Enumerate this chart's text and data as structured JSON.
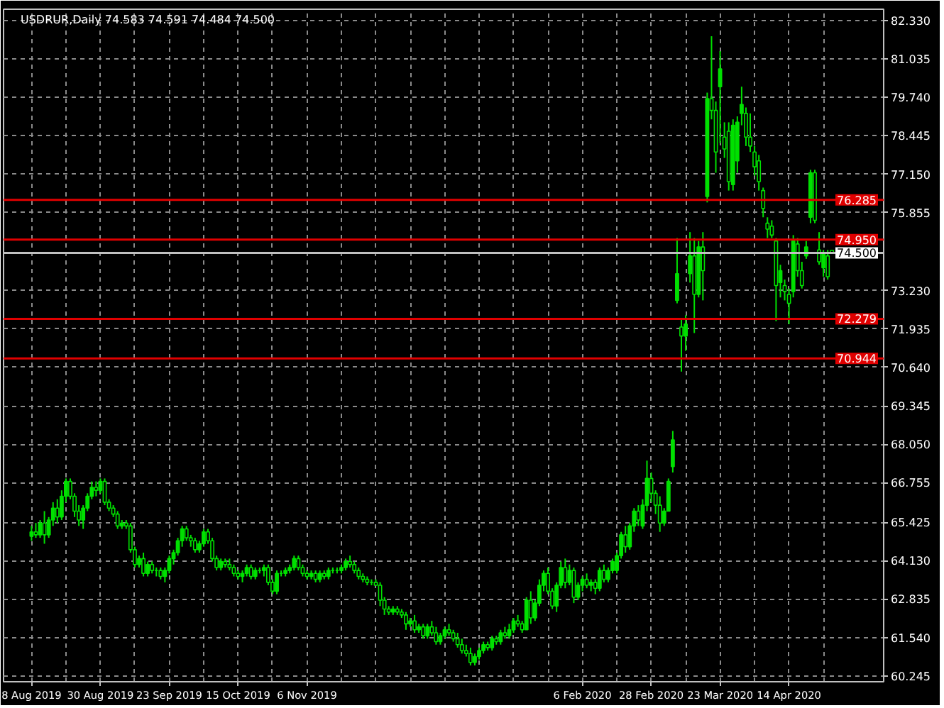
{
  "chart_data": {
    "type": "candlestick",
    "title": "USDRUR,Daily  74.583 74.591 74.484 74.500",
    "color": "#00e000",
    "grid": true,
    "ylim": [
      60.05,
      82.71
    ],
    "categories": [
      "8 Aug 2019",
      null,
      null,
      null,
      null,
      null,
      null,
      null,
      null,
      null,
      null,
      null,
      null,
      null,
      null,
      null,
      "30 Aug 2019",
      null,
      null,
      null,
      null,
      null,
      null,
      null,
      null,
      null,
      null,
      null,
      null,
      null,
      null,
      null,
      "23 Sep 2019",
      null,
      null,
      null,
      null,
      null,
      null,
      null,
      null,
      null,
      null,
      null,
      null,
      null,
      null,
      null,
      "15 Oct 2019",
      null,
      null,
      null,
      null,
      null,
      null,
      null,
      null,
      null,
      null,
      null,
      null,
      null,
      null,
      null,
      "6 Nov 2019",
      null,
      null,
      null,
      null,
      null,
      null,
      null,
      null,
      null,
      null,
      null,
      null,
      null,
      null,
      null,
      null,
      null,
      null,
      null,
      null,
      null,
      null,
      null,
      null,
      null,
      null,
      null,
      null,
      null,
      null,
      null,
      null,
      null,
      null,
      null,
      null,
      null,
      null,
      null,
      null,
      null,
      null,
      null,
      null,
      null,
      null,
      null,
      null,
      null,
      null,
      null,
      null,
      null,
      null,
      null,
      null,
      null,
      null,
      null,
      null,
      null,
      null,
      null,
      "6 Feb 2020",
      null,
      null,
      null,
      null,
      null,
      null,
      null,
      null,
      null,
      null,
      null,
      null,
      null,
      null,
      null,
      "28 Feb 2020",
      null,
      null,
      null,
      null,
      null,
      null,
      null,
      null,
      null,
      null,
      null,
      null,
      null,
      null,
      null,
      "23 Mar 2020",
      null,
      null,
      null,
      null,
      null,
      null,
      null,
      null,
      null,
      null,
      null,
      null,
      null,
      null,
      null,
      "14 Apr 2020",
      null,
      null,
      null,
      null,
      null,
      null,
      null,
      null,
      null,
      null
    ],
    "yticks": [
      {
        "value": 82.33,
        "label": "82.330"
      },
      {
        "value": 81.035,
        "label": "81.035"
      },
      {
        "value": 79.74,
        "label": "79.740"
      },
      {
        "value": 78.445,
        "label": "78.445"
      },
      {
        "value": 77.15,
        "label": "77.150"
      },
      {
        "value": 75.855,
        "label": "75.855"
      },
      {
        "value": 73.23,
        "label": "73.230"
      },
      {
        "value": 71.935,
        "label": "71.935"
      },
      {
        "value": 70.64,
        "label": "70.640"
      },
      {
        "value": 69.345,
        "label": "69.345"
      },
      {
        "value": 68.05,
        "label": "68.050"
      },
      {
        "value": 66.755,
        "label": "66.755"
      },
      {
        "value": 65.425,
        "label": "65.425"
      },
      {
        "value": 64.13,
        "label": "64.130"
      },
      {
        "value": 62.835,
        "label": "62.835"
      },
      {
        "value": 61.54,
        "label": "61.540"
      },
      {
        "value": 60.245,
        "label": "60.245"
      }
    ],
    "ref_lines": [
      {
        "axis": "y",
        "value": 76.285,
        "label": "76.285",
        "color": "#e00000"
      },
      {
        "axis": "y",
        "value": 74.95,
        "label": "74.950",
        "color": "#e00000"
      },
      {
        "axis": "y",
        "value": 74.5,
        "label": "74.500",
        "color": "#c0c0c0"
      },
      {
        "axis": "y",
        "value": 72.279,
        "label": "72.279",
        "color": "#e00000"
      },
      {
        "axis": "y",
        "value": 70.944,
        "label": "70.944",
        "color": "#e00000"
      }
    ],
    "ohlc": [
      [
        64.95,
        65.3,
        64.8,
        65.1
      ],
      [
        65.1,
        65.4,
        64.9,
        65.0
      ],
      [
        65.0,
        65.5,
        64.9,
        65.4
      ],
      [
        65.4,
        65.8,
        64.7,
        65.0
      ],
      [
        65.0,
        65.6,
        64.9,
        65.5
      ],
      [
        65.5,
        66.1,
        65.3,
        65.9
      ],
      [
        65.9,
        66.2,
        65.4,
        65.6
      ],
      [
        65.6,
        66.5,
        65.5,
        66.3
      ],
      [
        66.3,
        66.9,
        66.1,
        66.8
      ],
      [
        66.8,
        66.9,
        66.2,
        66.3
      ],
      [
        66.3,
        66.4,
        65.6,
        65.8
      ],
      [
        65.8,
        66.0,
        65.3,
        65.5
      ],
      [
        65.5,
        66.0,
        65.2,
        65.9
      ],
      [
        65.9,
        66.4,
        65.8,
        66.3
      ],
      [
        66.3,
        66.8,
        66.2,
        66.6
      ],
      [
        66.6,
        66.8,
        66.3,
        66.5
      ],
      [
        66.5,
        66.9,
        66.4,
        66.8
      ],
      [
        66.8,
        66.9,
        66.0,
        66.1
      ],
      [
        66.1,
        66.2,
        65.8,
        65.9
      ],
      [
        65.9,
        66.0,
        65.6,
        65.7
      ],
      [
        65.7,
        65.8,
        65.2,
        65.3
      ],
      [
        65.3,
        65.5,
        65.2,
        65.4
      ],
      [
        65.4,
        65.5,
        65.2,
        65.3
      ],
      [
        65.3,
        65.4,
        64.4,
        64.5
      ],
      [
        64.5,
        64.6,
        63.9,
        64.0
      ],
      [
        64.0,
        64.3,
        63.9,
        64.2
      ],
      [
        64.2,
        64.4,
        63.6,
        63.7
      ],
      [
        63.7,
        64.1,
        63.6,
        64.0
      ],
      [
        64.0,
        64.1,
        63.7,
        63.8
      ],
      [
        63.8,
        63.9,
        63.6,
        63.8
      ],
      [
        63.8,
        63.9,
        63.5,
        63.6
      ],
      [
        63.6,
        63.9,
        63.4,
        63.8
      ],
      [
        63.8,
        64.3,
        63.7,
        64.2
      ],
      [
        64.2,
        64.5,
        64.0,
        64.4
      ],
      [
        64.4,
        64.9,
        64.3,
        64.8
      ],
      [
        64.8,
        65.3,
        64.6,
        65.2
      ],
      [
        65.2,
        65.3,
        64.8,
        64.9
      ],
      [
        64.9,
        65.0,
        64.6,
        64.8
      ],
      [
        64.8,
        64.9,
        64.4,
        64.5
      ],
      [
        64.5,
        64.8,
        64.4,
        64.7
      ],
      [
        64.7,
        65.2,
        64.6,
        65.1
      ],
      [
        65.1,
        65.2,
        64.7,
        64.8
      ],
      [
        64.8,
        64.9,
        64.1,
        64.2
      ],
      [
        64.2,
        64.3,
        63.8,
        63.9
      ],
      [
        63.9,
        64.2,
        63.8,
        64.1
      ],
      [
        64.1,
        64.2,
        63.9,
        64.0
      ],
      [
        64.0,
        64.2,
        63.8,
        63.9
      ],
      [
        63.9,
        64.0,
        63.6,
        63.7
      ],
      [
        63.7,
        63.8,
        63.5,
        63.6
      ],
      [
        63.6,
        63.8,
        63.4,
        63.7
      ],
      [
        63.7,
        64.0,
        63.6,
        63.9
      ],
      [
        63.9,
        64.0,
        63.5,
        63.6
      ],
      [
        63.6,
        63.9,
        63.5,
        63.8
      ],
      [
        63.8,
        63.9,
        63.7,
        63.8
      ],
      [
        63.8,
        64.0,
        63.6,
        63.9
      ],
      [
        63.9,
        64.0,
        63.3,
        63.4
      ],
      [
        63.4,
        63.5,
        63.0,
        63.1
      ],
      [
        63.1,
        63.8,
        63.0,
        63.7
      ],
      [
        63.7,
        63.8,
        63.6,
        63.7
      ],
      [
        63.7,
        63.9,
        63.6,
        63.8
      ],
      [
        63.8,
        64.0,
        63.7,
        63.9
      ],
      [
        63.9,
        64.3,
        63.8,
        64.2
      ],
      [
        64.2,
        64.3,
        63.8,
        63.9
      ],
      [
        63.9,
        64.0,
        63.6,
        63.7
      ],
      [
        63.7,
        63.8,
        63.5,
        63.6
      ],
      [
        63.6,
        63.8,
        63.5,
        63.7
      ],
      [
        63.7,
        63.8,
        63.4,
        63.5
      ],
      [
        63.5,
        63.8,
        63.4,
        63.7
      ],
      [
        63.7,
        63.8,
        63.5,
        63.6
      ],
      [
        63.6,
        63.9,
        63.5,
        63.8
      ],
      [
        63.8,
        63.9,
        63.7,
        63.8
      ],
      [
        63.8,
        63.9,
        63.7,
        63.8
      ],
      [
        63.8,
        64.0,
        63.7,
        63.9
      ],
      [
        63.9,
        64.2,
        63.8,
        64.1
      ],
      [
        64.1,
        64.3,
        63.9,
        64.0
      ],
      [
        64.0,
        64.1,
        63.7,
        63.8
      ],
      [
        63.8,
        63.9,
        63.5,
        63.6
      ],
      [
        63.6,
        63.7,
        63.4,
        63.5
      ],
      [
        63.5,
        63.6,
        63.3,
        63.4
      ],
      [
        63.4,
        63.5,
        63.3,
        63.4
      ],
      [
        63.4,
        63.5,
        63.3,
        63.3
      ],
      [
        63.3,
        63.4,
        62.6,
        62.8
      ],
      [
        62.8,
        62.9,
        62.3,
        62.5
      ],
      [
        62.5,
        62.6,
        62.3,
        62.4
      ],
      [
        62.4,
        62.6,
        62.3,
        62.5
      ],
      [
        62.5,
        62.6,
        62.3,
        62.4
      ],
      [
        62.4,
        62.5,
        62.2,
        62.3
      ],
      [
        62.3,
        62.4,
        61.8,
        62.0
      ],
      [
        62.0,
        62.2,
        61.9,
        62.1
      ],
      [
        62.1,
        62.3,
        61.7,
        61.8
      ],
      [
        61.8,
        62.0,
        61.7,
        61.9
      ],
      [
        61.9,
        62.0,
        61.5,
        61.6
      ],
      [
        61.6,
        62.0,
        61.5,
        61.9
      ],
      [
        61.9,
        62.1,
        61.6,
        61.7
      ],
      [
        61.7,
        61.9,
        61.3,
        61.4
      ],
      [
        61.4,
        61.7,
        61.3,
        61.6
      ],
      [
        61.6,
        61.9,
        61.5,
        61.8
      ],
      [
        61.8,
        62.0,
        61.6,
        61.7
      ],
      [
        61.7,
        61.8,
        61.4,
        61.5
      ],
      [
        61.5,
        61.7,
        61.2,
        61.3
      ],
      [
        61.3,
        61.5,
        61.0,
        61.1
      ],
      [
        61.1,
        61.3,
        60.9,
        61.0
      ],
      [
        61.0,
        61.2,
        60.6,
        60.7
      ],
      [
        60.7,
        61.0,
        60.6,
        60.9
      ],
      [
        60.9,
        61.2,
        60.8,
        61.1
      ],
      [
        61.1,
        61.4,
        61.0,
        61.3
      ],
      [
        61.3,
        61.4,
        61.1,
        61.2
      ],
      [
        61.2,
        61.6,
        61.1,
        61.5
      ],
      [
        61.5,
        61.6,
        61.3,
        61.4
      ],
      [
        61.4,
        61.8,
        61.3,
        61.7
      ],
      [
        61.7,
        61.9,
        61.5,
        61.6
      ],
      [
        61.6,
        62.0,
        61.5,
        61.8
      ],
      [
        61.8,
        62.2,
        61.7,
        62.1
      ],
      [
        62.1,
        62.3,
        61.9,
        62.0
      ],
      [
        62.0,
        62.1,
        61.7,
        61.8
      ],
      [
        61.8,
        62.9,
        61.8,
        62.8
      ],
      [
        62.8,
        63.1,
        62.0,
        62.2
      ],
      [
        62.2,
        62.8,
        62.1,
        62.7
      ],
      [
        62.7,
        63.5,
        62.6,
        63.3
      ],
      [
        63.3,
        63.8,
        63.1,
        63.7
      ],
      [
        63.7,
        63.9,
        63.0,
        63.1
      ],
      [
        63.1,
        63.2,
        62.5,
        62.6
      ],
      [
        62.6,
        63.4,
        62.4,
        63.3
      ],
      [
        63.3,
        64.1,
        63.2,
        63.9
      ],
      [
        63.9,
        64.2,
        63.2,
        63.4
      ],
      [
        63.4,
        64.0,
        63.3,
        63.8
      ],
      [
        63.8,
        63.9,
        62.7,
        62.9
      ],
      [
        62.9,
        63.4,
        62.8,
        63.3
      ],
      [
        63.3,
        63.6,
        63.1,
        63.5
      ],
      [
        63.5,
        63.7,
        63.2,
        63.3
      ],
      [
        63.3,
        63.5,
        63.1,
        63.4
      ],
      [
        63.4,
        63.5,
        63.0,
        63.2
      ],
      [
        63.2,
        63.9,
        63.1,
        63.8
      ],
      [
        63.8,
        64.0,
        63.4,
        63.5
      ],
      [
        63.5,
        63.9,
        63.4,
        63.8
      ],
      [
        63.8,
        64.2,
        63.7,
        64.1
      ],
      [
        63.8,
        64.4,
        63.7,
        64.3
      ],
      [
        64.3,
        65.1,
        64.2,
        65.0
      ],
      [
        65.0,
        65.3,
        64.4,
        64.6
      ],
      [
        64.6,
        65.4,
        64.5,
        65.3
      ],
      [
        65.3,
        65.9,
        65.1,
        65.8
      ],
      [
        65.8,
        66.0,
        65.3,
        65.5
      ],
      [
        65.3,
        66.2,
        65.2,
        66.0
      ],
      [
        66.0,
        67.5,
        65.8,
        66.9
      ],
      [
        66.9,
        67.1,
        66.1,
        66.4
      ],
      [
        66.4,
        66.5,
        65.7,
        66.0
      ],
      [
        66.0,
        66.3,
        65.1,
        65.4
      ],
      [
        65.4,
        65.9,
        65.3,
        65.8
      ],
      [
        65.8,
        66.9,
        65.8,
        66.8
      ],
      [
        67.3,
        68.5,
        67.1,
        68.2
      ],
      [
        72.9,
        75.0,
        72.8,
        73.8
      ],
      [
        72.0,
        72.3,
        70.5,
        71.7
      ],
      [
        71.7,
        72.4,
        71.2,
        72.1
      ],
      [
        73.8,
        75.2,
        73.5,
        74.4
      ],
      [
        74.4,
        75.0,
        71.8,
        73.1
      ],
      [
        73.1,
        74.9,
        73.0,
        74.7
      ],
      [
        74.7,
        75.2,
        72.9,
        73.9
      ],
      [
        76.4,
        79.9,
        76.2,
        79.7
      ],
      [
        79.7,
        81.8,
        79.0,
        79.3
      ],
      [
        79.3,
        79.6,
        77.2,
        77.9
      ],
      [
        80.1,
        81.3,
        78.2,
        80.7
      ],
      [
        78.4,
        78.9,
        77.7,
        78.0
      ],
      [
        78.6,
        78.9,
        76.6,
        76.9
      ],
      [
        76.8,
        79.0,
        76.6,
        78.8
      ],
      [
        77.6,
        79.1,
        77.2,
        78.9
      ],
      [
        79.2,
        80.1,
        78.8,
        79.5
      ],
      [
        79.2,
        79.4,
        78.1,
        78.4
      ],
      [
        78.4,
        79.2,
        77.9,
        78.1
      ],
      [
        77.9,
        78.1,
        77.1,
        77.4
      ],
      [
        77.6,
        77.8,
        76.6,
        76.9
      ],
      [
        76.6,
        76.7,
        75.7,
        76.0
      ],
      [
        75.5,
        75.7,
        75.0,
        75.3
      ],
      [
        75.4,
        75.6,
        75.0,
        75.1
      ],
      [
        74.9,
        75.0,
        72.2,
        73.4
      ],
      [
        73.5,
        74.1,
        73.0,
        73.9
      ],
      [
        73.4,
        73.6,
        72.9,
        73.2
      ],
      [
        73.1,
        73.3,
        72.1,
        72.8
      ],
      [
        73.2,
        75.1,
        73.0,
        74.9
      ],
      [
        74.8,
        75.0,
        73.7,
        73.9
      ],
      [
        73.9,
        74.2,
        73.3,
        73.4
      ],
      [
        74.4,
        74.9,
        74.3,
        74.7
      ],
      [
        75.7,
        77.3,
        75.5,
        77.2
      ],
      [
        77.2,
        77.3,
        75.5,
        75.6
      ],
      [
        74.6,
        75.2,
        74.1,
        74.2
      ],
      [
        74.0,
        74.6,
        73.7,
        74.5
      ],
      [
        74.4,
        74.6,
        73.6,
        73.7
      ],
      [
        74.583,
        74.591,
        74.484,
        74.5
      ]
    ]
  }
}
